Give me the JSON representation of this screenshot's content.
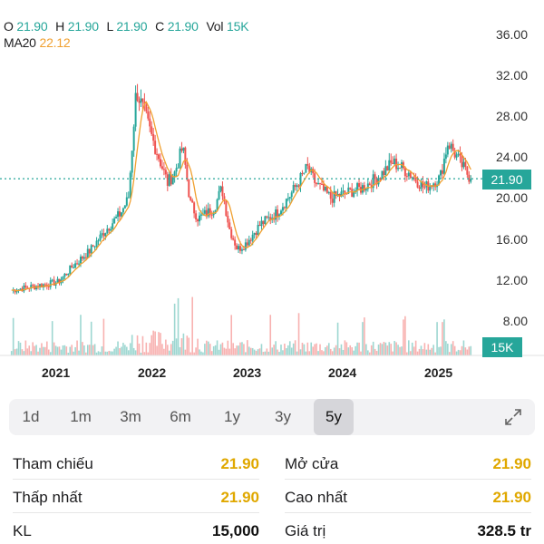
{
  "ohlc": {
    "o_label": "O",
    "o_value": "21.90",
    "h_label": "H",
    "h_value": "21.90",
    "l_label": "L",
    "l_value": "21.90",
    "c_label": "C",
    "c_value": "21.90",
    "vol_label": "Vol",
    "vol_value": "15K"
  },
  "ma": {
    "label": "MA20",
    "value": "22.12"
  },
  "price_badge": "21.90",
  "volume_badge": "15K",
  "colors": {
    "up": "#26a69a",
    "down": "#ef5350",
    "ma": "#f0a030",
    "badge": "#26a69a"
  },
  "chart_data": {
    "type": "candlestick",
    "y_ticks": [
      "36.00",
      "32.00",
      "28.00",
      "24.00",
      "20.00",
      "16.00",
      "12.00",
      "8.00"
    ],
    "x_ticks": [
      "2021",
      "2022",
      "2023",
      "2024",
      "2025"
    ],
    "ylim": [
      5,
      36
    ],
    "last_price": 21.9,
    "series_close": [
      [
        "2020-06",
        11.0
      ],
      [
        "2020-09",
        11.4
      ],
      [
        "2020-12",
        11.8
      ],
      [
        "2021-02",
        13.5
      ],
      [
        "2021-04",
        14.8
      ],
      [
        "2021-06",
        16.8
      ],
      [
        "2021-08",
        18.5
      ],
      [
        "2021-09",
        20.0
      ],
      [
        "2021-10",
        30.5
      ],
      [
        "2021-11",
        28.5
      ],
      [
        "2021-12",
        26.0
      ],
      [
        "2022-02",
        21.5
      ],
      [
        "2022-03",
        22.5
      ],
      [
        "2022-04",
        25.0
      ],
      [
        "2022-05",
        19.5
      ],
      [
        "2022-06",
        18.0
      ],
      [
        "2022-08",
        19.0
      ],
      [
        "2022-09",
        21.0
      ],
      [
        "2022-10",
        17.0
      ],
      [
        "2022-11",
        15.0
      ],
      [
        "2022-12",
        15.5
      ],
      [
        "2023-02",
        17.5
      ],
      [
        "2023-04",
        18.5
      ],
      [
        "2023-06",
        20.5
      ],
      [
        "2023-08",
        23.0
      ],
      [
        "2023-09",
        21.5
      ],
      [
        "2023-11",
        20.0
      ],
      [
        "2024-01",
        20.5
      ],
      [
        "2024-03",
        21.0
      ],
      [
        "2024-05",
        22.0
      ],
      [
        "2024-07",
        23.5
      ],
      [
        "2024-09",
        22.5
      ],
      [
        "2024-11",
        21.0
      ],
      [
        "2025-01",
        22.0
      ],
      [
        "2025-02",
        25.5
      ],
      [
        "2025-04",
        23.0
      ],
      [
        "2025-05",
        21.9
      ]
    ]
  },
  "ranges": [
    {
      "label": "1d",
      "active": false
    },
    {
      "label": "1m",
      "active": false
    },
    {
      "label": "3m",
      "active": false
    },
    {
      "label": "6m",
      "active": false
    },
    {
      "label": "1y",
      "active": false
    },
    {
      "label": "3y",
      "active": false
    },
    {
      "label": "5y",
      "active": true
    }
  ],
  "stats": {
    "ref_label": "Tham chiếu",
    "ref_value": "21.90",
    "open_label": "Mở cửa",
    "open_value": "21.90",
    "low_label": "Thấp nhất",
    "low_value": "21.90",
    "high_label": "Cao nhất",
    "high_value": "21.90",
    "vol_label": "KL",
    "vol_value": "15,000",
    "val_label": "Giá trị",
    "val_value": "328.5 tr"
  }
}
